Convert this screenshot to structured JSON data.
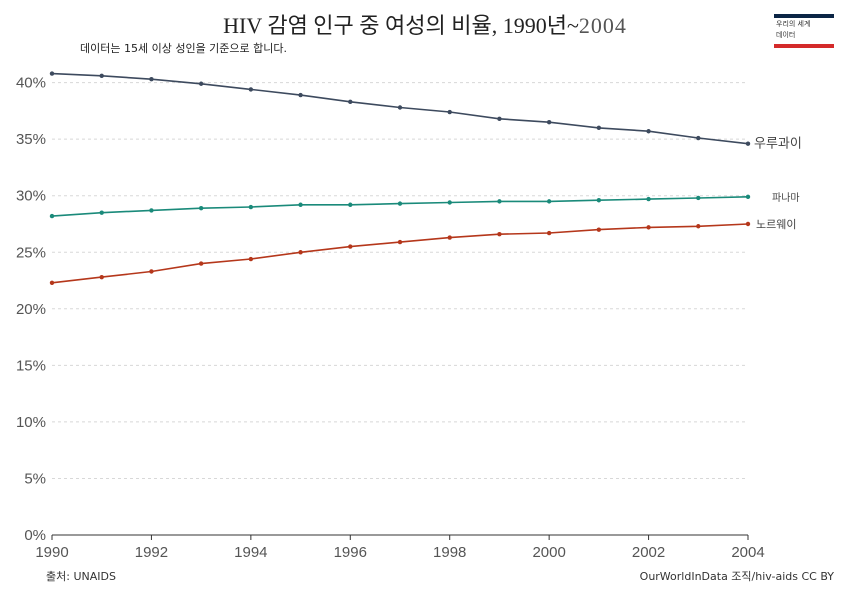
{
  "chart_data": {
    "type": "line",
    "title_main": "HIV 감염 인구 중 여성의 비율, 1990년~",
    "title_year": "2004",
    "subtitle": "데이터는 15세 이상 성인을 기준으로 합니다.",
    "x": [
      1990,
      1991,
      1992,
      1993,
      1994,
      1995,
      1996,
      1997,
      1998,
      1999,
      2000,
      2001,
      2002,
      2003,
      2004
    ],
    "xticks": [
      "1990",
      "1992",
      "1994",
      "1996",
      "1998",
      "2000",
      "2002",
      "2004"
    ],
    "yticks": [
      "0%",
      "5%",
      "10%",
      "15%",
      "20%",
      "25%",
      "30%",
      "35%",
      "40%"
    ],
    "ylim": [
      0,
      42
    ],
    "grid": true,
    "series": [
      {
        "name": "우루과이",
        "color": "#3d4a5e",
        "values": [
          40.8,
          40.6,
          40.3,
          39.9,
          39.4,
          38.9,
          38.3,
          37.8,
          37.4,
          36.8,
          36.5,
          36.0,
          35.7,
          35.1,
          34.6
        ]
      },
      {
        "name": "파나마",
        "color": "#1a8a7a",
        "values": [
          28.2,
          28.5,
          28.7,
          28.9,
          29.0,
          29.2,
          29.2,
          29.3,
          29.4,
          29.5,
          29.5,
          29.6,
          29.7,
          29.8,
          29.9
        ]
      },
      {
        "name": "노르웨이",
        "color": "#b5371b",
        "values": [
          22.3,
          22.8,
          23.3,
          24.0,
          24.4,
          25.0,
          25.5,
          25.9,
          26.3,
          26.6,
          26.7,
          27.0,
          27.2,
          27.3,
          27.5
        ]
      }
    ]
  },
  "logo": {
    "line1": "우리의 세계",
    "line2": "데이터"
  },
  "footer": {
    "source": "출처: UNAIDS",
    "credit": "OurWorldInData 조직/hiv-aids CC BY"
  }
}
